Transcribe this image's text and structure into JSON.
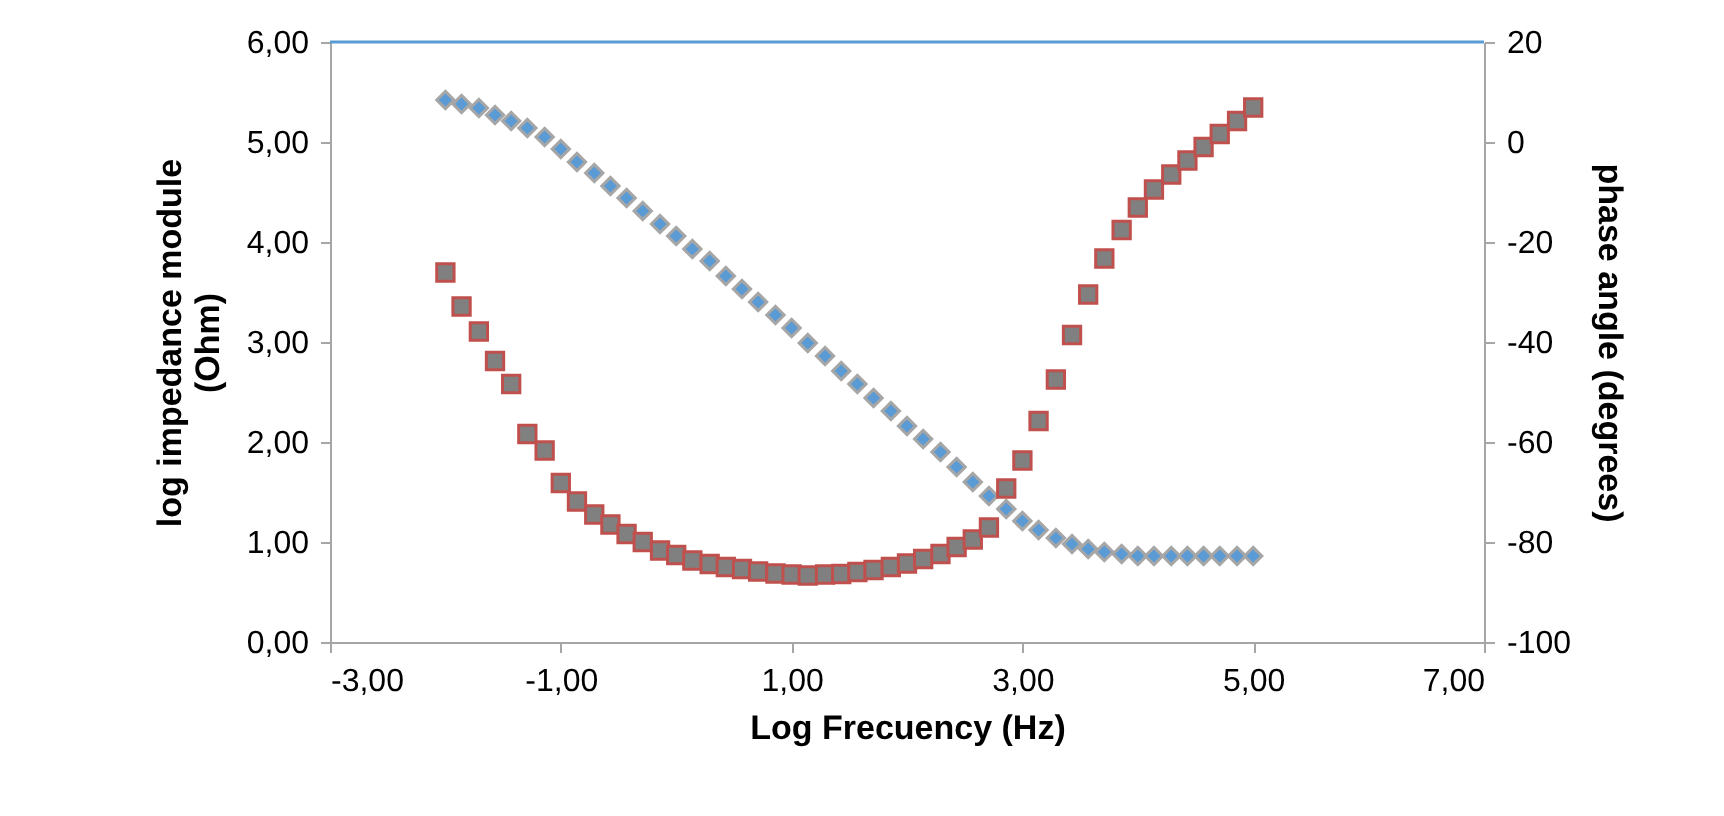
{
  "chart_data": {
    "type": "scatter",
    "xlabel": "Log Frecuency (Hz)",
    "ylabel": "log impedance module\n(Ohm)",
    "y2label": "phase angle (degrees)",
    "x": [
      -2,
      -1.86,
      -1.71,
      -1.57,
      -1.43,
      -1.29,
      -1.14,
      -1,
      -0.86,
      -0.71,
      -0.57,
      -0.43,
      -0.29,
      -0.14,
      0,
      0.14,
      0.29,
      0.43,
      0.57,
      0.71,
      0.86,
      1,
      1.14,
      1.29,
      1.43,
      1.57,
      1.71,
      1.86,
      2,
      2.14,
      2.29,
      2.43,
      2.57,
      2.71,
      2.86,
      3,
      3.14,
      3.29,
      3.43,
      3.57,
      3.71,
      3.86,
      4,
      4.14,
      4.29,
      4.43,
      4.57,
      4.71,
      4.86,
      5
    ],
    "series": [
      {
        "name": null,
        "color": "#5b9bd5",
        "marker": "diamond",
        "axis": "y",
        "values": [
          5.42,
          5.38,
          5.34,
          5.27,
          5.21,
          5.14,
          5.05,
          4.93,
          4.8,
          4.69,
          4.56,
          4.44,
          4.31,
          4.18,
          4.06,
          3.93,
          3.81,
          3.66,
          3.53,
          3.4,
          3.27,
          3.14,
          2.99,
          2.86,
          2.71,
          2.58,
          2.44,
          2.31,
          2.16,
          2.03,
          1.9,
          1.75,
          1.6,
          1.46,
          1.33,
          1.21,
          1.12,
          1.04,
          0.98,
          0.93,
          0.9,
          0.88,
          0.86,
          0.86,
          0.86,
          0.86,
          0.86,
          0.86,
          0.86,
          0.86
        ]
      },
      {
        "name": null,
        "color": "#808080",
        "marker": "square",
        "axis": "y2",
        "values": [
          -26.1,
          -32.9,
          -37.9,
          -43.8,
          -48.4,
          -58.4,
          -61.7,
          -68.2,
          -71.9,
          -74.5,
          -76.5,
          -78.4,
          -80.0,
          -81.7,
          -82.6,
          -83.7,
          -84.4,
          -85.0,
          -85.4,
          -85.9,
          -86.3,
          -86.5,
          -86.7,
          -86.5,
          -86.4,
          -86.0,
          -85.6,
          -85.0,
          -84.3,
          -83.4,
          -82.4,
          -81.0,
          -79.5,
          -77.1,
          -69.3,
          -63.7,
          -55.8,
          -47.5,
          -38.6,
          -30.5,
          -23.3,
          -17.6,
          -13.1,
          -9.5,
          -6.5,
          -3.7,
          -1.0,
          1.6,
          4.2,
          6.9
        ]
      }
    ],
    "xlim": [
      -3,
      7
    ],
    "xticks": [
      {
        "value": -3,
        "label": "-3,00"
      },
      {
        "value": -1,
        "label": "-1,00"
      },
      {
        "value": 1,
        "label": "1,00"
      },
      {
        "value": 3,
        "label": "3,00"
      },
      {
        "value": 5,
        "label": "5,00"
      },
      {
        "value": 7,
        "label": "7,00"
      }
    ],
    "ylim": [
      0,
      6
    ],
    "yticks": [
      {
        "value": 0,
        "label": "0,00"
      },
      {
        "value": 1,
        "label": "1,00"
      },
      {
        "value": 2,
        "label": "2,00"
      },
      {
        "value": 3,
        "label": "3,00"
      },
      {
        "value": 4,
        "label": "4,00"
      },
      {
        "value": 5,
        "label": "5,00"
      },
      {
        "value": 6,
        "label": "6,00"
      }
    ],
    "y2lim": [
      -100,
      20
    ],
    "y2ticks": [
      -100,
      -80,
      -60,
      -40,
      -20,
      0,
      20
    ],
    "ref_lines": [
      {
        "axis": "y",
        "value": 6,
        "color": "#5b9bd5"
      }
    ],
    "grid": false
  }
}
